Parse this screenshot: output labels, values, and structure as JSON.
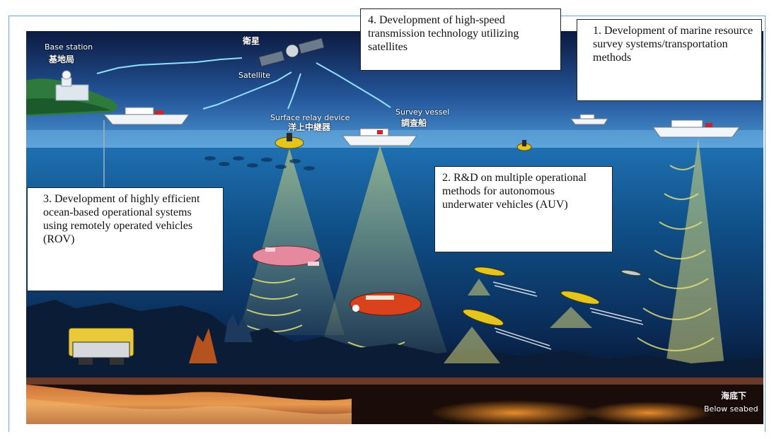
{
  "labels": {
    "base_station_en": "Base station",
    "base_station_jp": "基地局",
    "satellite_jp": "衛星",
    "satellite_en": "Satellite",
    "relay_en": "Surface relay device",
    "relay_jp": "洋上中継器",
    "vessel_en": "Survey vessel",
    "vessel_jp": "調査船",
    "seabed_jp": "海底下",
    "seabed_en": "Below seabed"
  },
  "callouts": {
    "c1": "1. Development of marine resource survey systems/transportation methods",
    "c2": "2. R&D on multiple operational methods for autonomous underwater vehicles (AUV)",
    "c3": "3. Development of highly efficient ocean-based operational systems using remotely operated vehicles (ROV)",
    "c4": "4. Development of high-speed transmission technology utilizing satellites"
  },
  "colors": {
    "sky_top": "#0c1a40",
    "sky_bottom": "#3f86c6",
    "ocean": "#0f4f86",
    "deep": "#06162e",
    "beam": "#e6e27a",
    "signal": "#8fe0ff",
    "auv_yellow": "#e3c51e",
    "rov_red": "#d9421d"
  }
}
